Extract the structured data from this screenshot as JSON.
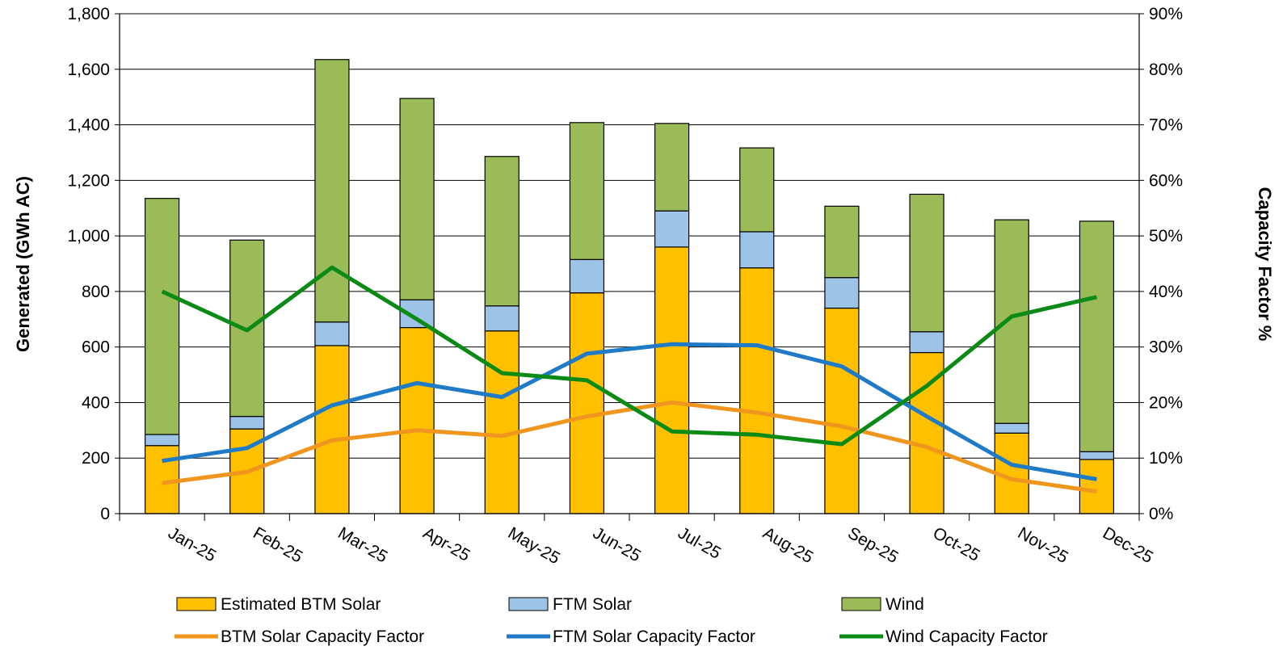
{
  "chart_data": {
    "type": "bar",
    "stacked": true,
    "categories": [
      "Jan-25",
      "Feb-25",
      "Mar-25",
      "Apr-25",
      "May-25",
      "Jun-25",
      "Jul-25",
      "Aug-25",
      "Sep-25",
      "Oct-25",
      "Nov-25",
      "Dec-25"
    ],
    "series": [
      {
        "name": "Estimated BTM Solar",
        "type": "bar",
        "axis": "left",
        "color": "#FFC000",
        "values": [
          245,
          305,
          605,
          670,
          658,
          795,
          960,
          885,
          740,
          580,
          290,
          195
        ]
      },
      {
        "name": "FTM Solar",
        "type": "bar",
        "axis": "left",
        "color": "#9DC3E6",
        "values": [
          40,
          45,
          85,
          100,
          90,
          120,
          130,
          130,
          110,
          75,
          35,
          28
        ]
      },
      {
        "name": "Wind",
        "type": "bar",
        "axis": "left",
        "color": "#9BBB59",
        "values": [
          850,
          635,
          945,
          725,
          538,
          493,
          315,
          302,
          257,
          495,
          733,
          830
        ]
      },
      {
        "name": "BTM Solar Capacity Factor",
        "type": "line",
        "axis": "right",
        "color": "#F0961E",
        "values": [
          5.5,
          7.5,
          13.2,
          15.0,
          14.0,
          17.5,
          20.0,
          18.2,
          15.7,
          12.0,
          6.2,
          4.0
        ]
      },
      {
        "name": "FTM Solar Capacity Factor",
        "type": "line",
        "axis": "right",
        "color": "#1F7AC8",
        "values": [
          9.5,
          11.8,
          19.5,
          23.5,
          21.0,
          28.8,
          30.5,
          30.3,
          26.5,
          17.5,
          8.8,
          6.2
        ]
      },
      {
        "name": "Wind Capacity Factor",
        "type": "line",
        "axis": "right",
        "color": "#0B8A15",
        "values": [
          40.0,
          33.0,
          44.3,
          35.0,
          25.3,
          24.0,
          14.8,
          14.2,
          12.5,
          23.0,
          35.5,
          39.0
        ]
      }
    ],
    "ylabel": "Generated (GWh AC)",
    "y2label": "Capacity Factor %",
    "ylim": [
      0,
      1800
    ],
    "yticks": [
      0,
      200,
      400,
      600,
      800,
      1000,
      1200,
      1400,
      1600,
      1800
    ],
    "ytick_labels": [
      "0",
      "200",
      "400",
      "600",
      "800",
      "1,000",
      "1,200",
      "1,400",
      "1,600",
      "1,800"
    ],
    "y2lim": [
      0,
      90
    ],
    "y2ticks": [
      0,
      10,
      20,
      30,
      40,
      50,
      60,
      70,
      80,
      90
    ],
    "y2tick_labels": [
      "0%",
      "10%",
      "20%",
      "30%",
      "40%",
      "50%",
      "60%",
      "70%",
      "80%",
      "90%"
    ],
    "grid": true,
    "legend_position": "bottom"
  }
}
